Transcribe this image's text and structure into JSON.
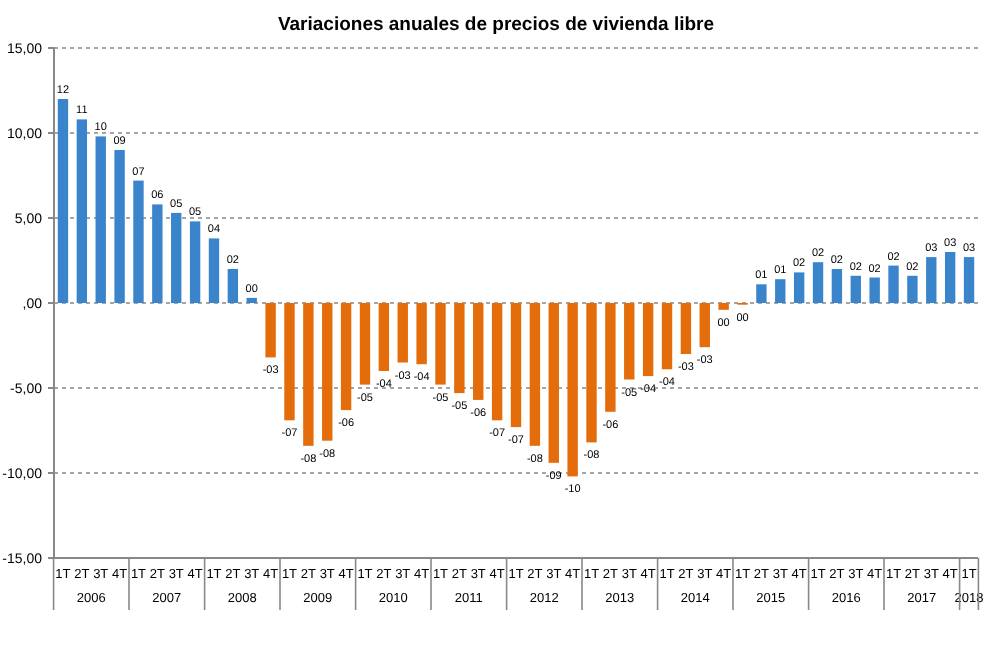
{
  "chart_data": {
    "type": "bar",
    "title": "Variaciones anuales de precios de vivienda libre",
    "categories": [
      "1T",
      "2T",
      "3T",
      "4T",
      "1T",
      "2T",
      "3T",
      "4T",
      "1T",
      "2T",
      "3T",
      "4T",
      "1T",
      "2T",
      "3T",
      "4T",
      "1T",
      "2T",
      "3T",
      "4T",
      "1T",
      "2T",
      "3T",
      "4T",
      "1T",
      "2T",
      "3T",
      "4T",
      "1T",
      "2T",
      "3T",
      "4T",
      "1T",
      "2T",
      "3T",
      "4T",
      "1T",
      "2T",
      "3T",
      "4T",
      "1T",
      "2T",
      "3T",
      "4T",
      "1T",
      "2T",
      "3T",
      "4T",
      "1T"
    ],
    "values": [
      12.0,
      10.8,
      9.8,
      9.0,
      7.2,
      5.8,
      5.3,
      4.8,
      3.8,
      2.0,
      0.3,
      -3.2,
      -6.9,
      -8.4,
      -8.1,
      -6.3,
      -4.8,
      -4.0,
      -3.5,
      -3.6,
      -4.8,
      -5.3,
      -5.7,
      -6.9,
      -7.3,
      -8.4,
      -9.4,
      -10.2,
      -8.2,
      -6.4,
      -4.5,
      -4.3,
      -3.9,
      -3.0,
      -2.6,
      -0.4,
      -0.1,
      1.1,
      1.4,
      1.8,
      2.4,
      2.0,
      1.6,
      1.5,
      2.2,
      1.6,
      2.7,
      3.0,
      2.7
    ],
    "colors": [
      "#3a84cc",
      "#3a84cc",
      "#3a84cc",
      "#3a84cc",
      "#3a84cc",
      "#3a84cc",
      "#3a84cc",
      "#3a84cc",
      "#3a84cc",
      "#3a84cc",
      "#3a84cc",
      "#e46c0a",
      "#e46c0a",
      "#e46c0a",
      "#e46c0a",
      "#e46c0a",
      "#e46c0a",
      "#e46c0a",
      "#e46c0a",
      "#e46c0a",
      "#e46c0a",
      "#e46c0a",
      "#e46c0a",
      "#e46c0a",
      "#e46c0a",
      "#e46c0a",
      "#e46c0a",
      "#e46c0a",
      "#e46c0a",
      "#e46c0a",
      "#e46c0a",
      "#e46c0a",
      "#e46c0a",
      "#e46c0a",
      "#e46c0a",
      "#e46c0a",
      "#e46c0a",
      "#3a84cc",
      "#3a84cc",
      "#3a84cc",
      "#3a84cc",
      "#3a84cc",
      "#3a84cc",
      "#3a84cc",
      "#3a84cc",
      "#3a84cc",
      "#3a84cc",
      "#3a84cc",
      "#3a84cc"
    ],
    "value_labels": [
      "12",
      "11",
      "10",
      "09",
      "07",
      "06",
      "05",
      "05",
      "04",
      "02",
      "00",
      "-03",
      "-07",
      "-08",
      "-08",
      "-06",
      "-05",
      "-04",
      "-03",
      "-04",
      "-05",
      "-05",
      "-06",
      "-07",
      "-07",
      "-08",
      "-09",
      "-10",
      "-08",
      "-06",
      "-05",
      "-04",
      "-04",
      "-03",
      "-03",
      "00",
      "00",
      "01",
      "01",
      "02",
      "02",
      "02",
      "02",
      "02",
      "02",
      "02",
      "03",
      "03",
      "03"
    ],
    "ylim": [
      -15,
      15
    ],
    "yticks": [
      {
        "value": 15,
        "label": "15,00"
      },
      {
        "value": 10,
        "label": "10,00"
      },
      {
        "value": 5,
        "label": "5,00"
      },
      {
        "value": 0,
        "label": ",00"
      },
      {
        "value": -5,
        "label": "-5,00"
      },
      {
        "value": -10,
        "label": "-10,00"
      },
      {
        "value": -15,
        "label": "-15,00"
      }
    ],
    "grid": "y",
    "annotations": [
      "2006",
      "2007",
      "2008",
      "2009",
      "2010",
      "2011",
      "2012",
      "2013",
      "2014",
      "2015",
      "2016",
      "2017",
      "2018"
    ]
  }
}
